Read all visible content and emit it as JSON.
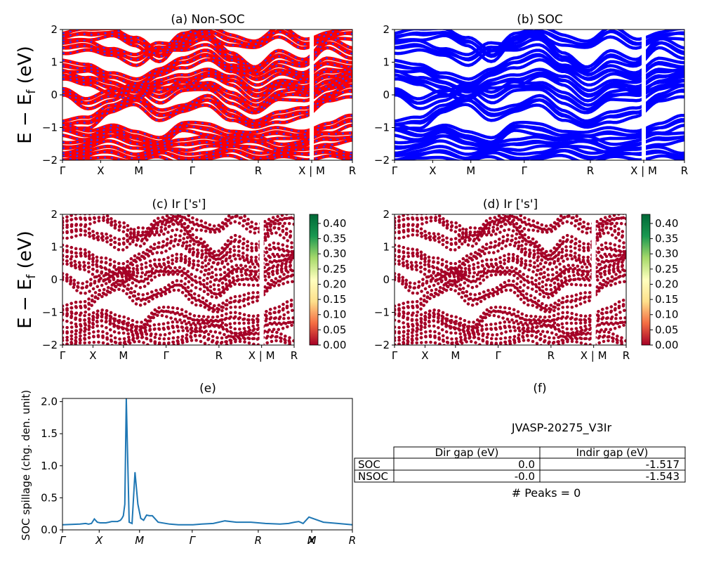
{
  "panels": {
    "a": {
      "title": "(a) Non-SOC"
    },
    "b": {
      "title": "(b) SOC"
    },
    "c": {
      "title": "(c)  Ir ['s']"
    },
    "d": {
      "title": "(d) Ir ['s']"
    },
    "e": {
      "title": "(e)",
      "ylabel": "SOC spillage (chg. den. unit)"
    },
    "f": {
      "title": "(f)",
      "material": "JVASP-20275_V3Ir",
      "peaks": "# Peaks = 0"
    }
  },
  "ylabel_band": "E − E",
  "ylabel_sub": "f",
  "ylabel_unit": " (eV)",
  "kpath_labels": [
    "Γ",
    "X",
    "M",
    "Γ",
    "R",
    "X | M",
    "R"
  ],
  "kpath_labels_e": [
    "Γ",
    "X",
    "M",
    "Γ",
    "R",
    "X",
    "M",
    "R"
  ],
  "colorbar": {
    "ticks": [
      "0.00",
      "0.05",
      "0.10",
      "0.15",
      "0.20",
      "0.25",
      "0.30",
      "0.35",
      "0.40"
    ],
    "colors": [
      "#a50026",
      "#f46d43",
      "#fee08b",
      "#ffffbf",
      "#a6d96a",
      "#1a9850",
      "#006837"
    ]
  },
  "colors": {
    "nonsoc_red": "#ff0000",
    "nonsoc_blue": "#3333ff",
    "soc_blue": "#0000ff",
    "proj": "#a50026",
    "spillage": "#1f77b4"
  },
  "table": {
    "headers": [
      "",
      "Dir gap (eV)",
      "Indir gap (eV)"
    ],
    "rows": [
      {
        "label": "SOC",
        "dir": "0.0",
        "indir": "-1.517"
      },
      {
        "label": "NSOC",
        "dir": "-0.0",
        "indir": "-1.543"
      }
    ]
  },
  "chart_data": [
    {
      "type": "line",
      "title": "(a) Non-SOC",
      "ylabel": "E − E_f (eV)",
      "ylim": [
        -2,
        2
      ],
      "yticks": [
        -2,
        -1,
        0,
        1,
        2
      ],
      "xticks": [
        "Γ",
        "X",
        "M",
        "Γ",
        "R",
        "X | M",
        "R"
      ],
      "bands": [
        [
          1.75,
          1.85,
          1.95,
          1.6,
          1.2,
          1.8,
          1.9,
          1.7,
          1.55,
          1.9,
          1.6,
          1.8,
          1.85
        ],
        [
          1.4,
          1.55,
          1.3,
          1.05,
          1.5,
          1.45,
          1.7,
          1.2,
          0.7,
          1.2,
          1.0,
          1.55,
          1.3
        ],
        [
          0.9,
          0.85,
          0.5,
          0.35,
          0.7,
          0.95,
          1.25,
          0.8,
          0.45,
          0.8,
          0.55,
          0.95,
          0.9
        ],
        [
          0.65,
          0.4,
          0.2,
          0.0,
          0.3,
          0.45,
          0.7,
          0.4,
          0.0,
          0.35,
          0.2,
          0.6,
          0.7
        ],
        [
          0.1,
          -0.3,
          0.0,
          0.25,
          -0.1,
          0.3,
          0.25,
          -0.1,
          -0.4,
          -0.05,
          0.0,
          0.3,
          0.4
        ],
        [
          -0.95,
          -0.85,
          -0.4,
          -0.2,
          -0.6,
          -0.4,
          -0.2,
          -0.6,
          -0.9,
          -0.7,
          -0.5,
          -0.1,
          0.1
        ],
        [
          -1.1,
          -1.2,
          -1.05,
          -1.3,
          -1.4,
          -1.0,
          -1.05,
          -1.2,
          -1.3,
          -1.15,
          -1.2,
          -1.05,
          -0.75
        ],
        [
          -1.6,
          -1.5,
          -1.3,
          -1.45,
          -1.6,
          -1.55,
          -1.4,
          -1.5,
          -1.45,
          -1.6,
          -1.55,
          -1.35,
          -1.25
        ],
        [
          -1.95,
          -1.85,
          -1.75,
          -1.9,
          -1.8,
          -1.95,
          -1.85,
          -1.75,
          -1.9,
          -1.8,
          -1.85,
          -1.7,
          -1.9
        ]
      ]
    },
    {
      "type": "line",
      "title": "(b) SOC",
      "ylim": [
        -2,
        2
      ],
      "yticks": [
        -2,
        -1,
        0,
        1,
        2
      ],
      "xticks": [
        "Γ",
        "X",
        "M",
        "Γ",
        "R",
        "X | M",
        "R"
      ],
      "bands": [
        [
          1.75,
          1.85,
          1.95,
          1.6,
          1.2,
          1.8,
          1.9,
          1.7,
          1.55,
          1.9,
          1.6,
          1.8,
          1.85
        ],
        [
          1.4,
          1.55,
          1.3,
          1.05,
          1.5,
          1.45,
          1.7,
          1.2,
          0.7,
          1.2,
          1.0,
          1.55,
          1.3
        ],
        [
          0.9,
          0.85,
          0.5,
          0.35,
          0.7,
          0.95,
          1.25,
          0.8,
          0.45,
          0.8,
          0.55,
          0.95,
          0.9
        ],
        [
          0.65,
          0.4,
          0.2,
          0.0,
          0.3,
          0.45,
          0.7,
          0.4,
          0.0,
          0.35,
          0.2,
          0.6,
          0.7
        ],
        [
          0.1,
          -0.3,
          0.0,
          0.25,
          -0.1,
          0.3,
          0.25,
          -0.1,
          -0.4,
          -0.05,
          0.0,
          0.3,
          0.4
        ],
        [
          -0.95,
          -0.85,
          -0.4,
          -0.2,
          -0.6,
          -0.4,
          -0.2,
          -0.6,
          -0.9,
          -0.7,
          -0.5,
          -0.1,
          0.1
        ],
        [
          -1.1,
          -1.2,
          -1.05,
          -1.3,
          -1.4,
          -1.0,
          -1.05,
          -1.2,
          -1.3,
          -1.15,
          -1.2,
          -1.05,
          -0.75
        ],
        [
          -1.6,
          -1.5,
          -1.3,
          -1.45,
          -1.6,
          -1.55,
          -1.4,
          -1.5,
          -1.45,
          -1.6,
          -1.55,
          -1.35,
          -1.25
        ],
        [
          -1.95,
          -1.85,
          -1.75,
          -1.9,
          -1.8,
          -1.95,
          -1.85,
          -1.75,
          -1.9,
          -1.8,
          -1.85,
          -1.7,
          -1.9
        ]
      ]
    },
    {
      "type": "scatter",
      "title": "(c)  Ir ['s']",
      "ylim": [
        -2,
        2
      ],
      "yticks": [
        -2,
        -1,
        0,
        1,
        2
      ],
      "colorbar_range": [
        0.0,
        0.43
      ]
    },
    {
      "type": "scatter",
      "title": "(d) Ir ['s']",
      "ylim": [
        -2,
        2
      ],
      "yticks": [
        -2,
        -1,
        0,
        1,
        2
      ],
      "colorbar_range": [
        0.0,
        0.43
      ]
    },
    {
      "type": "line",
      "title": "(e)",
      "ylabel": "SOC spillage (chg. den. unit)",
      "ylim": [
        0,
        2.05
      ],
      "yticks": [
        0.0,
        0.5,
        1.0,
        1.5,
        2.0
      ],
      "xticks": [
        "Γ",
        "X",
        "M",
        "Γ",
        "R",
        "X",
        "M",
        "R"
      ],
      "x": [
        0,
        0.03,
        0.06,
        0.08,
        0.09,
        0.1,
        0.11,
        0.12,
        0.13,
        0.14,
        0.15,
        0.16,
        0.17,
        0.19,
        0.2,
        0.205,
        0.21,
        0.215,
        0.22,
        0.23,
        0.24,
        0.25,
        0.26,
        0.27,
        0.28,
        0.29,
        0.3,
        0.31,
        0.33,
        0.37,
        0.4,
        0.44,
        0.45,
        0.48,
        0.52,
        0.56,
        0.6,
        0.65,
        0.7,
        0.75,
        0.78,
        0.8,
        0.815,
        0.82,
        0.83,
        0.85,
        0.9,
        0.95,
        1.0
      ],
      "y": [
        0.08,
        0.085,
        0.09,
        0.1,
        0.09,
        0.1,
        0.17,
        0.12,
        0.11,
        0.11,
        0.11,
        0.12,
        0.13,
        0.13,
        0.15,
        0.18,
        0.22,
        0.4,
        2.05,
        0.12,
        0.1,
        0.9,
        0.4,
        0.18,
        0.15,
        0.23,
        0.22,
        0.22,
        0.12,
        0.09,
        0.08,
        0.08,
        0.08,
        0.09,
        0.1,
        0.14,
        0.12,
        0.12,
        0.1,
        0.09,
        0.1,
        0.12,
        0.13,
        0.12,
        0.1,
        0.2,
        0.12,
        0.1,
        0.08
      ]
    }
  ]
}
